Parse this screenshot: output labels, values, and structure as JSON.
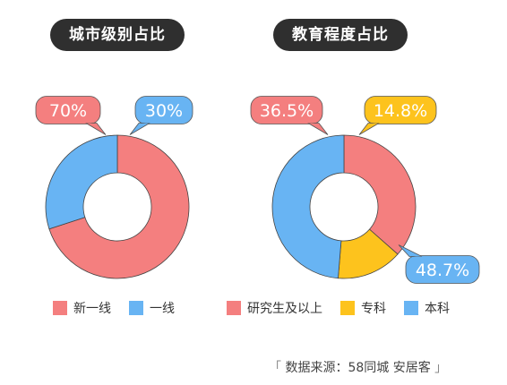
{
  "colors": {
    "red": "#f47f7f",
    "blue": "#68b4f3",
    "yellow": "#fdc31d",
    "title_bg": "#2f2f2f"
  },
  "chart_data": [
    {
      "type": "pie",
      "title": "城市级别占比",
      "categories": [
        "新一线",
        "一线"
      ],
      "values": [
        70,
        30
      ],
      "labels": [
        "70%",
        "30%"
      ],
      "colors": [
        "#f47f7f",
        "#68b4f3"
      ],
      "legend_position": "bottom"
    },
    {
      "type": "pie",
      "title": "教育程度占比",
      "categories": [
        "研究生及以上",
        "专科",
        "本科"
      ],
      "values": [
        36.5,
        14.8,
        48.7
      ],
      "labels": [
        "36.5%",
        "14.8%",
        "48.7%"
      ],
      "colors": [
        "#f47f7f",
        "#fdc31d",
        "#68b4f3"
      ],
      "legend_position": "bottom"
    }
  ],
  "source": {
    "open": "「",
    "text": "数据来源：58同城  安居客",
    "close": "」"
  }
}
